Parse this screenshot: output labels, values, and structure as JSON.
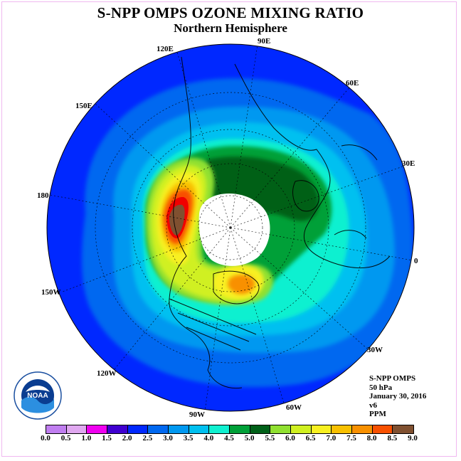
{
  "title": "S-NPP OMPS OZONE MIXING RATIO",
  "subtitle": "Northern Hemisphere",
  "longitude_labels": [
    "90E",
    "60E",
    "30E",
    "0",
    "30W",
    "60W",
    "90W",
    "120W",
    "150W",
    "180",
    "150E",
    "120E"
  ],
  "info": {
    "instrument": "S-NPP OMPS",
    "level": "50 hPa",
    "date": "January 30, 2016",
    "version": "v6",
    "units": "PPM"
  },
  "logo_text": "NOAA",
  "colorbar": {
    "ticks": [
      "0.0",
      "0.5",
      "1.0",
      "1.5",
      "2.0",
      "2.5",
      "3.0",
      "3.5",
      "4.0",
      "4.5",
      "5.0",
      "5.5",
      "6.0",
      "6.5",
      "7.0",
      "7.5",
      "8.0",
      "8.5",
      "9.0"
    ],
    "colors": [
      "#c07ef0",
      "#e0a8f0",
      "#f000f0",
      "#4000d0",
      "#0028ff",
      "#0068f0",
      "#0098f0",
      "#00c0f0",
      "#10f0d0",
      "#00a038",
      "#006018",
      "#90e030",
      "#d0f020",
      "#f8f020",
      "#f8c000",
      "#f89000",
      "#f85000",
      "#f00000",
      "#805030"
    ]
  }
}
